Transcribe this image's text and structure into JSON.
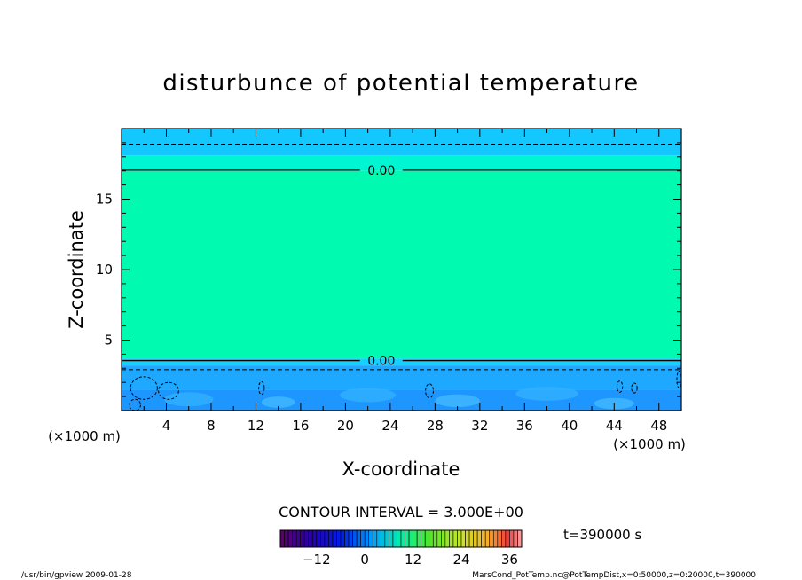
{
  "chart_data": {
    "type": "heatmap",
    "title": "disturbunce of potential temperature",
    "xlabel": "X-coordinate",
    "ylabel": "Z-coordinate",
    "x_unit": "(×1000 m)",
    "xlim": [
      0,
      50
    ],
    "ylim": [
      0,
      20
    ],
    "x_ticks": [
      4,
      8,
      12,
      16,
      20,
      24,
      28,
      32,
      36,
      40,
      44,
      48
    ],
    "y_ticks": [
      5,
      10,
      15
    ],
    "grid": false,
    "bands": [
      {
        "z0": 0.0,
        "z1": 1.5,
        "color": "#1e96ff"
      },
      {
        "z0": 1.5,
        "z1": 3.2,
        "color": "#1ea8ff"
      },
      {
        "z0": 3.2,
        "z1": 3.7,
        "color": "#14d2ff"
      },
      {
        "z0": 3.7,
        "z1": 17.0,
        "color": "#00faaf"
      },
      {
        "z0": 17.0,
        "z1": 18.1,
        "color": "#00f5d2"
      },
      {
        "z0": 18.1,
        "z1": 20.0,
        "color": "#14c8ff"
      }
    ],
    "contours": [
      {
        "z": 3.55,
        "style": "solid",
        "label": "0.00",
        "label_x": 23.2
      },
      {
        "z": 17.05,
        "style": "solid",
        "label": "0.00",
        "label_x": 23.2
      },
      {
        "z": 2.9,
        "style": "dashed"
      },
      {
        "z": 18.9,
        "style": "dashed"
      }
    ],
    "colorbar": {
      "title": "CONTOUR INTERVAL = 3.000E+00",
      "tick_labels": [
        "−12",
        "0",
        "12",
        "24",
        "36"
      ],
      "tick_values": [
        -12,
        0,
        12,
        24,
        36
      ],
      "range": [
        -21,
        39
      ]
    },
    "time_label": "t=390000 s"
  },
  "footer": {
    "left": "/usr/bin/gpview   2009-01-28",
    "right": "MarsCond_PotTemp.nc@PotTempDist,x=0:50000,z=0:20000,t=390000"
  }
}
